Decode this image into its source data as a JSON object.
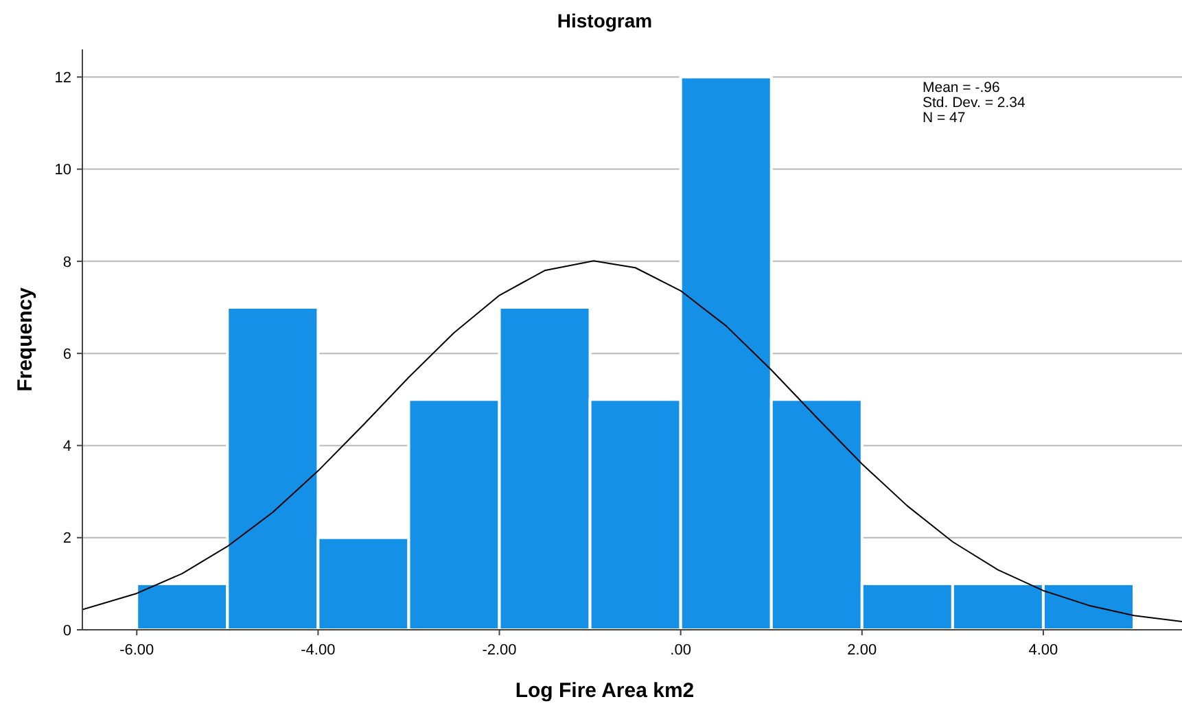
{
  "chart_data": {
    "type": "histogram",
    "title": "Histogram",
    "xlabel": "Log Fire Area km2",
    "ylabel": "Frequency",
    "bins": [
      -6,
      -5,
      -4,
      -3,
      -2,
      -1,
      0,
      1,
      2,
      3,
      4,
      5
    ],
    "values": [
      1,
      7,
      2,
      5,
      7,
      5,
      12,
      5,
      1,
      1,
      1
    ],
    "color": "#1490e6",
    "series": [
      {
        "type": "line",
        "color": "#000000",
        "x": [
          -6.6,
          -6,
          -5.5,
          -5,
          -4.5,
          -4,
          -3.5,
          -3,
          -2.5,
          -2,
          -1.5,
          -0.96,
          -0.5,
          0,
          0.5,
          1,
          1.5,
          2,
          2.5,
          3,
          3.5,
          4,
          4.5,
          5,
          5.53
        ],
        "values": [
          0.44,
          0.79,
          1.22,
          1.81,
          2.55,
          3.45,
          4.45,
          5.48,
          6.45,
          7.26,
          7.8,
          8.01,
          7.86,
          7.36,
          6.6,
          5.64,
          4.61,
          3.6,
          2.69,
          1.91,
          1.3,
          0.85,
          0.53,
          0.31,
          0.18
        ]
      }
    ],
    "xlim": [
      -6.6,
      5.53
    ],
    "ylim": [
      0,
      12.6
    ],
    "xticks": [
      {
        "value": -6,
        "label": "-6.00"
      },
      {
        "value": -4,
        "label": "-4.00"
      },
      {
        "value": -2,
        "label": "-2.00"
      },
      {
        "value": 0,
        "label": ".00"
      },
      {
        "value": 2,
        "label": "2.00"
      },
      {
        "value": 4,
        "label": "4.00"
      }
    ],
    "yticks": [
      0,
      2,
      4,
      6,
      8,
      10,
      12
    ],
    "grid": "y",
    "annotations": [
      "Mean = -.96",
      "Std. Dev. = 2.34",
      "N = 47"
    ]
  }
}
